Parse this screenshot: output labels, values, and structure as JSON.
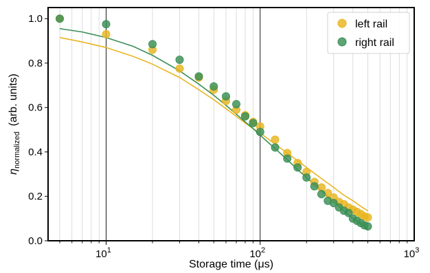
{
  "chart_data": {
    "type": "scatter",
    "title": "",
    "xlabel": "Storage time (μs)",
    "ylabel_parts": {
      "eta": "η",
      "subscript": "normalized",
      "rest": "(arb. units)"
    },
    "xscale": "log",
    "xlim": [
      4.2,
      1000
    ],
    "ylim": [
      0.0,
      1.05
    ],
    "x_ticks": [
      {
        "base": "10",
        "exp": "1",
        "value": 10
      },
      {
        "base": "10",
        "exp": "2",
        "value": 100
      },
      {
        "base": "10",
        "exp": "3",
        "value": 1000
      }
    ],
    "y_ticks": [
      "0.0",
      "0.2",
      "0.4",
      "0.6",
      "0.8",
      "1.0"
    ],
    "grid": "vertical minor lines",
    "legend_position": "top-right",
    "series": [
      {
        "name": "left rail",
        "color": "#e8b520",
        "points": [
          [
            5,
            1.0
          ],
          [
            10,
            0.93
          ],
          [
            20,
            0.86
          ],
          [
            30,
            0.775
          ],
          [
            40,
            0.735
          ],
          [
            50,
            0.68
          ],
          [
            60,
            0.63
          ],
          [
            70,
            0.59
          ],
          [
            80,
            0.565
          ],
          [
            90,
            0.535
          ],
          [
            100,
            0.515
          ],
          [
            125,
            0.455
          ],
          [
            150,
            0.395
          ],
          [
            175,
            0.35
          ],
          [
            200,
            0.31
          ],
          [
            225,
            0.265
          ],
          [
            250,
            0.24
          ],
          [
            275,
            0.215
          ],
          [
            300,
            0.195
          ],
          [
            325,
            0.175
          ],
          [
            350,
            0.165
          ],
          [
            375,
            0.15
          ],
          [
            400,
            0.14
          ],
          [
            425,
            0.13
          ],
          [
            450,
            0.12
          ],
          [
            475,
            0.11
          ],
          [
            500,
            0.105
          ]
        ],
        "fit": [
          [
            5,
            0.915
          ],
          [
            7,
            0.895
          ],
          [
            10,
            0.87
          ],
          [
            15,
            0.83
          ],
          [
            20,
            0.795
          ],
          [
            30,
            0.735
          ],
          [
            40,
            0.68
          ],
          [
            50,
            0.635
          ],
          [
            60,
            0.595
          ],
          [
            70,
            0.56
          ],
          [
            80,
            0.53
          ],
          [
            90,
            0.505
          ],
          [
            100,
            0.485
          ],
          [
            125,
            0.435
          ],
          [
            150,
            0.395
          ],
          [
            175,
            0.36
          ],
          [
            200,
            0.33
          ],
          [
            250,
            0.28
          ],
          [
            300,
            0.24
          ],
          [
            350,
            0.205
          ],
          [
            400,
            0.18
          ],
          [
            450,
            0.155
          ],
          [
            500,
            0.135
          ]
        ]
      },
      {
        "name": "right rail",
        "color": "#3a8f55",
        "points": [
          [
            5,
            1.0
          ],
          [
            10,
            0.975
          ],
          [
            20,
            0.885
          ],
          [
            30,
            0.815
          ],
          [
            40,
            0.74
          ],
          [
            50,
            0.695
          ],
          [
            60,
            0.65
          ],
          [
            70,
            0.615
          ],
          [
            80,
            0.56
          ],
          [
            90,
            0.53
          ],
          [
            100,
            0.49
          ],
          [
            125,
            0.42
          ],
          [
            150,
            0.37
          ],
          [
            175,
            0.33
          ],
          [
            200,
            0.285
          ],
          [
            225,
            0.245
          ],
          [
            250,
            0.21
          ],
          [
            275,
            0.18
          ],
          [
            300,
            0.17
          ],
          [
            325,
            0.15
          ],
          [
            350,
            0.135
          ],
          [
            375,
            0.125
          ],
          [
            400,
            0.1
          ],
          [
            425,
            0.09
          ],
          [
            450,
            0.08
          ],
          [
            475,
            0.07
          ],
          [
            500,
            0.065
          ]
        ],
        "fit": [
          [
            5,
            0.955
          ],
          [
            7,
            0.94
          ],
          [
            10,
            0.915
          ],
          [
            15,
            0.875
          ],
          [
            20,
            0.835
          ],
          [
            30,
            0.765
          ],
          [
            40,
            0.705
          ],
          [
            50,
            0.655
          ],
          [
            60,
            0.61
          ],
          [
            70,
            0.57
          ],
          [
            80,
            0.535
          ],
          [
            90,
            0.505
          ],
          [
            100,
            0.475
          ],
          [
            125,
            0.415
          ],
          [
            150,
            0.365
          ],
          [
            175,
            0.32
          ],
          [
            200,
            0.285
          ],
          [
            250,
            0.225
          ],
          [
            300,
            0.175
          ],
          [
            350,
            0.135
          ],
          [
            400,
            0.1
          ],
          [
            450,
            0.075
          ],
          [
            500,
            0.05
          ]
        ]
      }
    ]
  }
}
